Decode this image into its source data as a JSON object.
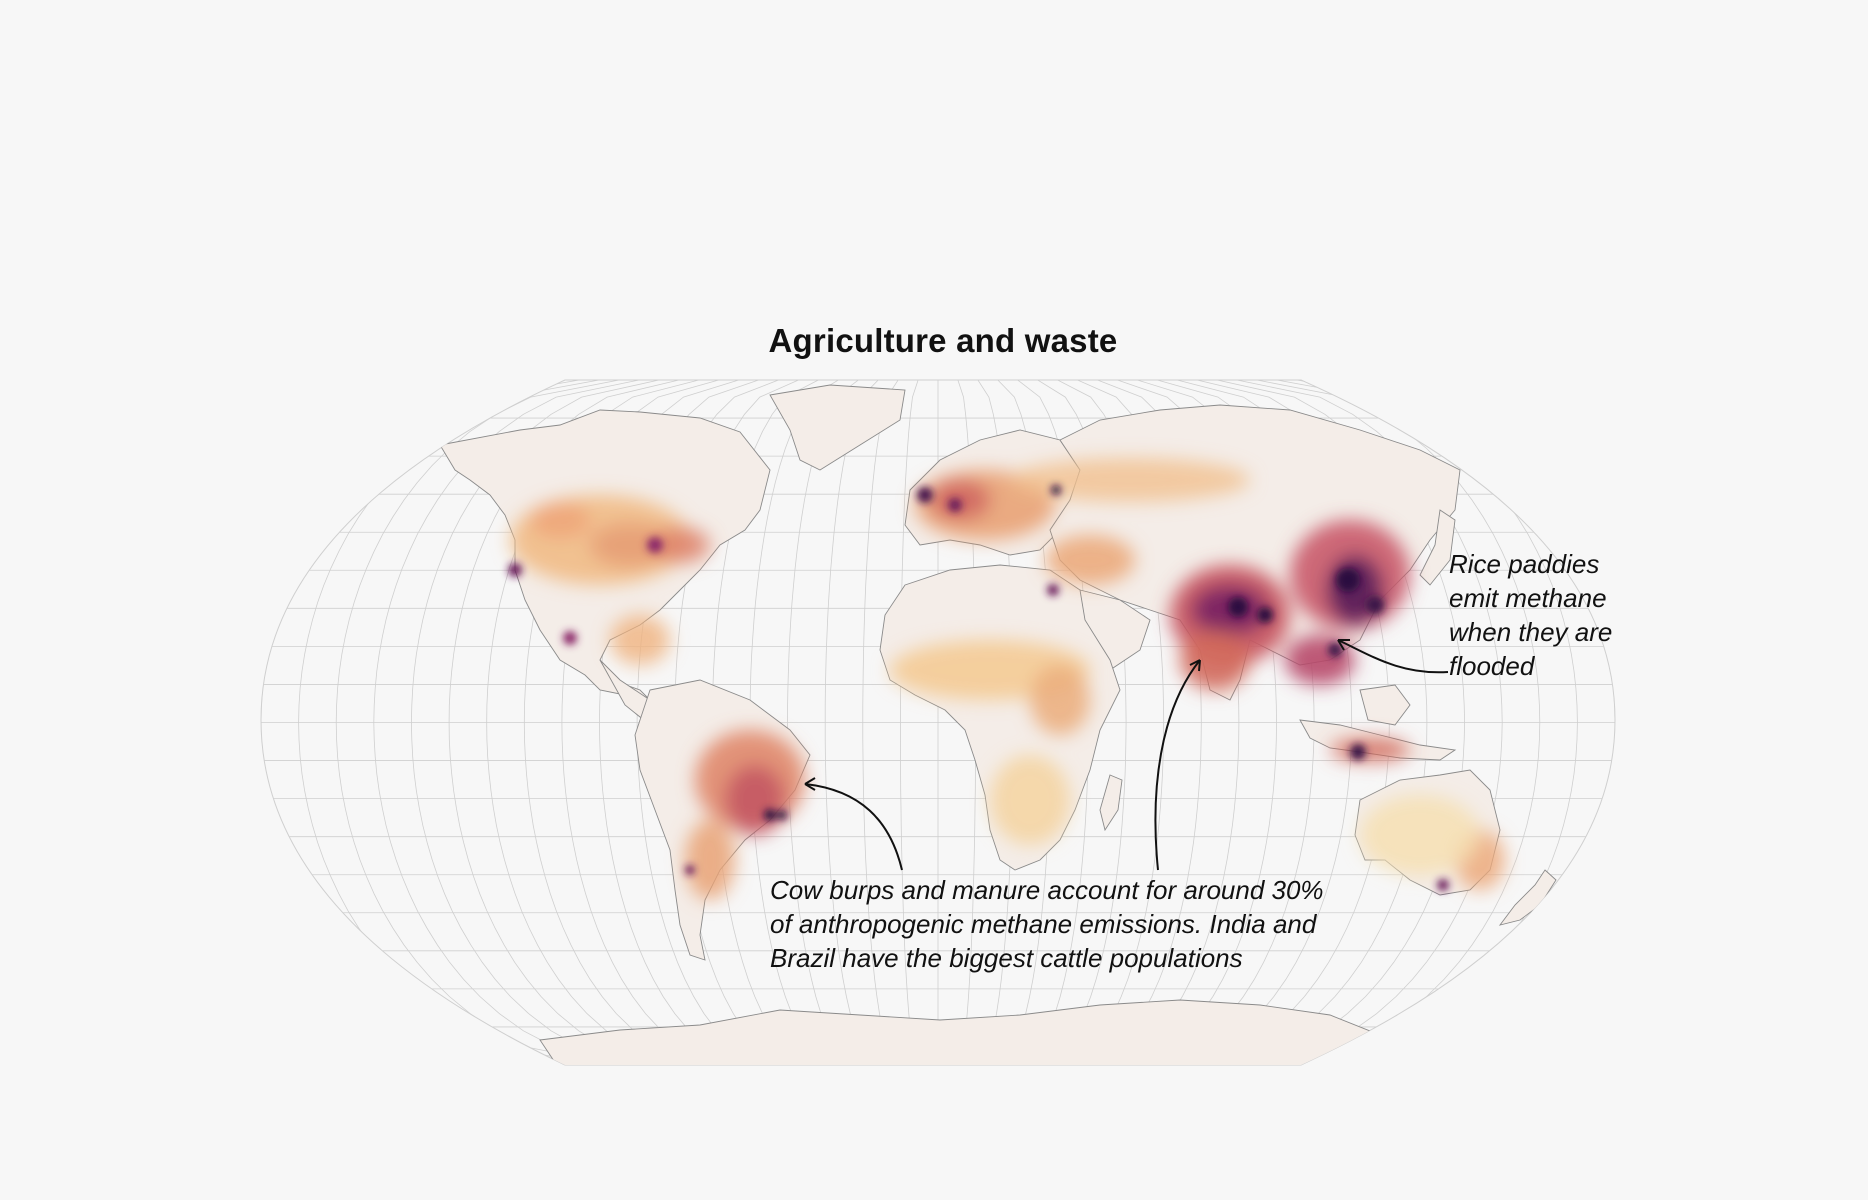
{
  "title": "Agriculture and waste",
  "annotations": {
    "rice": {
      "lines": [
        "Rice paddies",
        "emit methane",
        "when they are",
        "flooded"
      ]
    },
    "cattle": {
      "lines": [
        "Cow burps and manure account for around 30%",
        "of anthropogenic methane emissions. India and",
        "Brazil have the biggest cattle populations"
      ]
    }
  },
  "colors": {
    "background": "#f7f7f7",
    "ocean": "#f7f7f7",
    "land": "#f4ede8",
    "graticule": "#c9c9c9",
    "border": "#7d7d7d",
    "low": "#f6dcaa",
    "medium": "#eca97b",
    "high": "#d66a5b",
    "very_high": "#8c2a6a",
    "extreme": "#2c0f3f"
  }
}
